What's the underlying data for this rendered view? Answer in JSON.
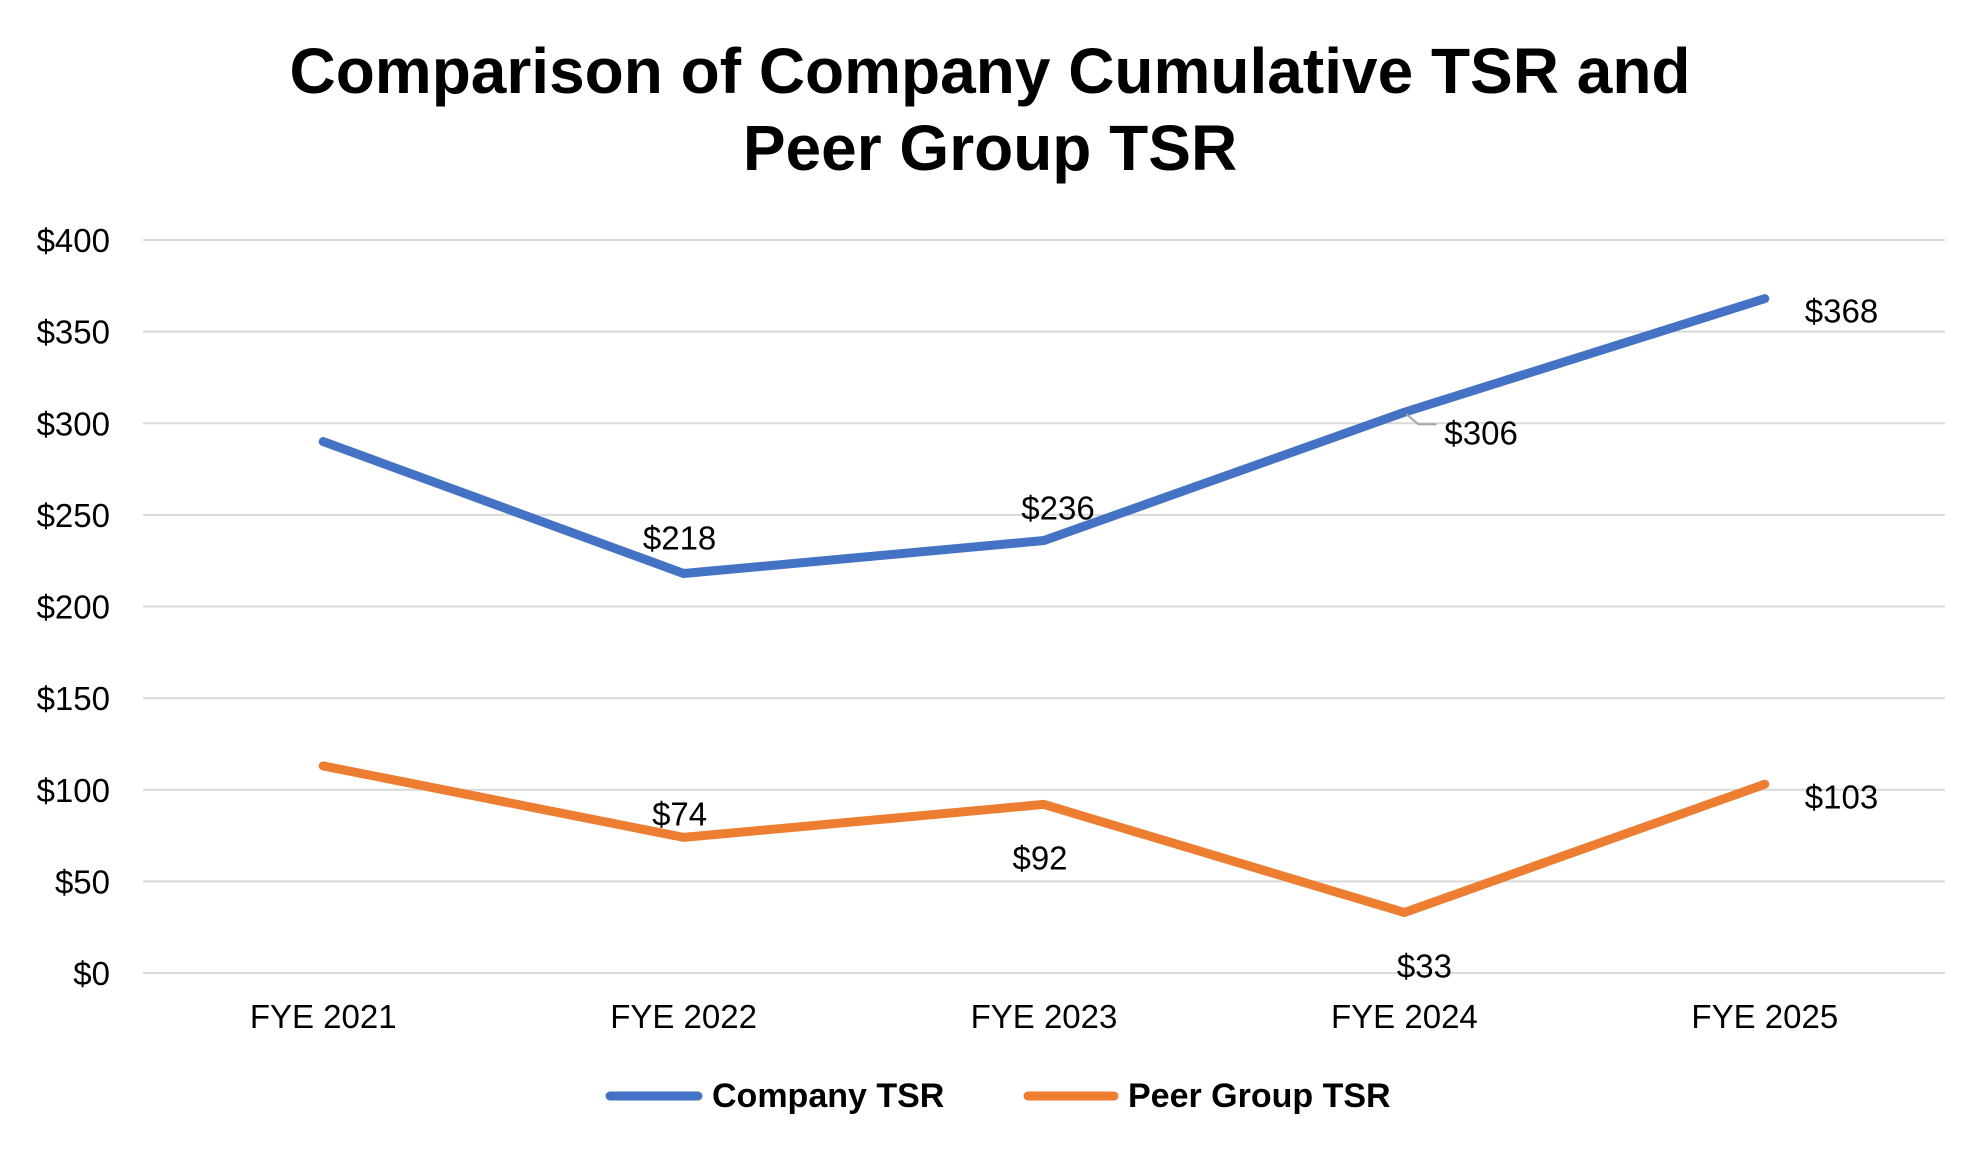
{
  "chart_data": {
    "type": "line",
    "title_lines": [
      "Comparison of Company Cumulative TSR and",
      "Peer Group TSR"
    ],
    "categories": [
      "FYE 2021",
      "FYE 2022",
      "FYE 2023",
      "FYE 2024",
      "FYE 2025"
    ],
    "ylim": [
      0,
      400
    ],
    "yticks": [
      0,
      50,
      100,
      150,
      200,
      250,
      300,
      350,
      400
    ],
    "ytick_labels": [
      "$0",
      "$50",
      "$100",
      "$150",
      "$200",
      "$250",
      "$300",
      "$350",
      "$400"
    ],
    "grid": true,
    "legend_position": "bottom",
    "series": [
      {
        "name": "Company TSR",
        "color": "#4472c4",
        "values": [
          290,
          218,
          236,
          306,
          368
        ],
        "data_labels": [
          "",
          "$218",
          "$236",
          "$306",
          "$368"
        ]
      },
      {
        "name": "Peer Group TSR",
        "color": "#ed7d31",
        "values": [
          113,
          74,
          92,
          33,
          103
        ],
        "data_labels": [
          "",
          "$74",
          "$92",
          "$33",
          "$103"
        ]
      }
    ]
  }
}
